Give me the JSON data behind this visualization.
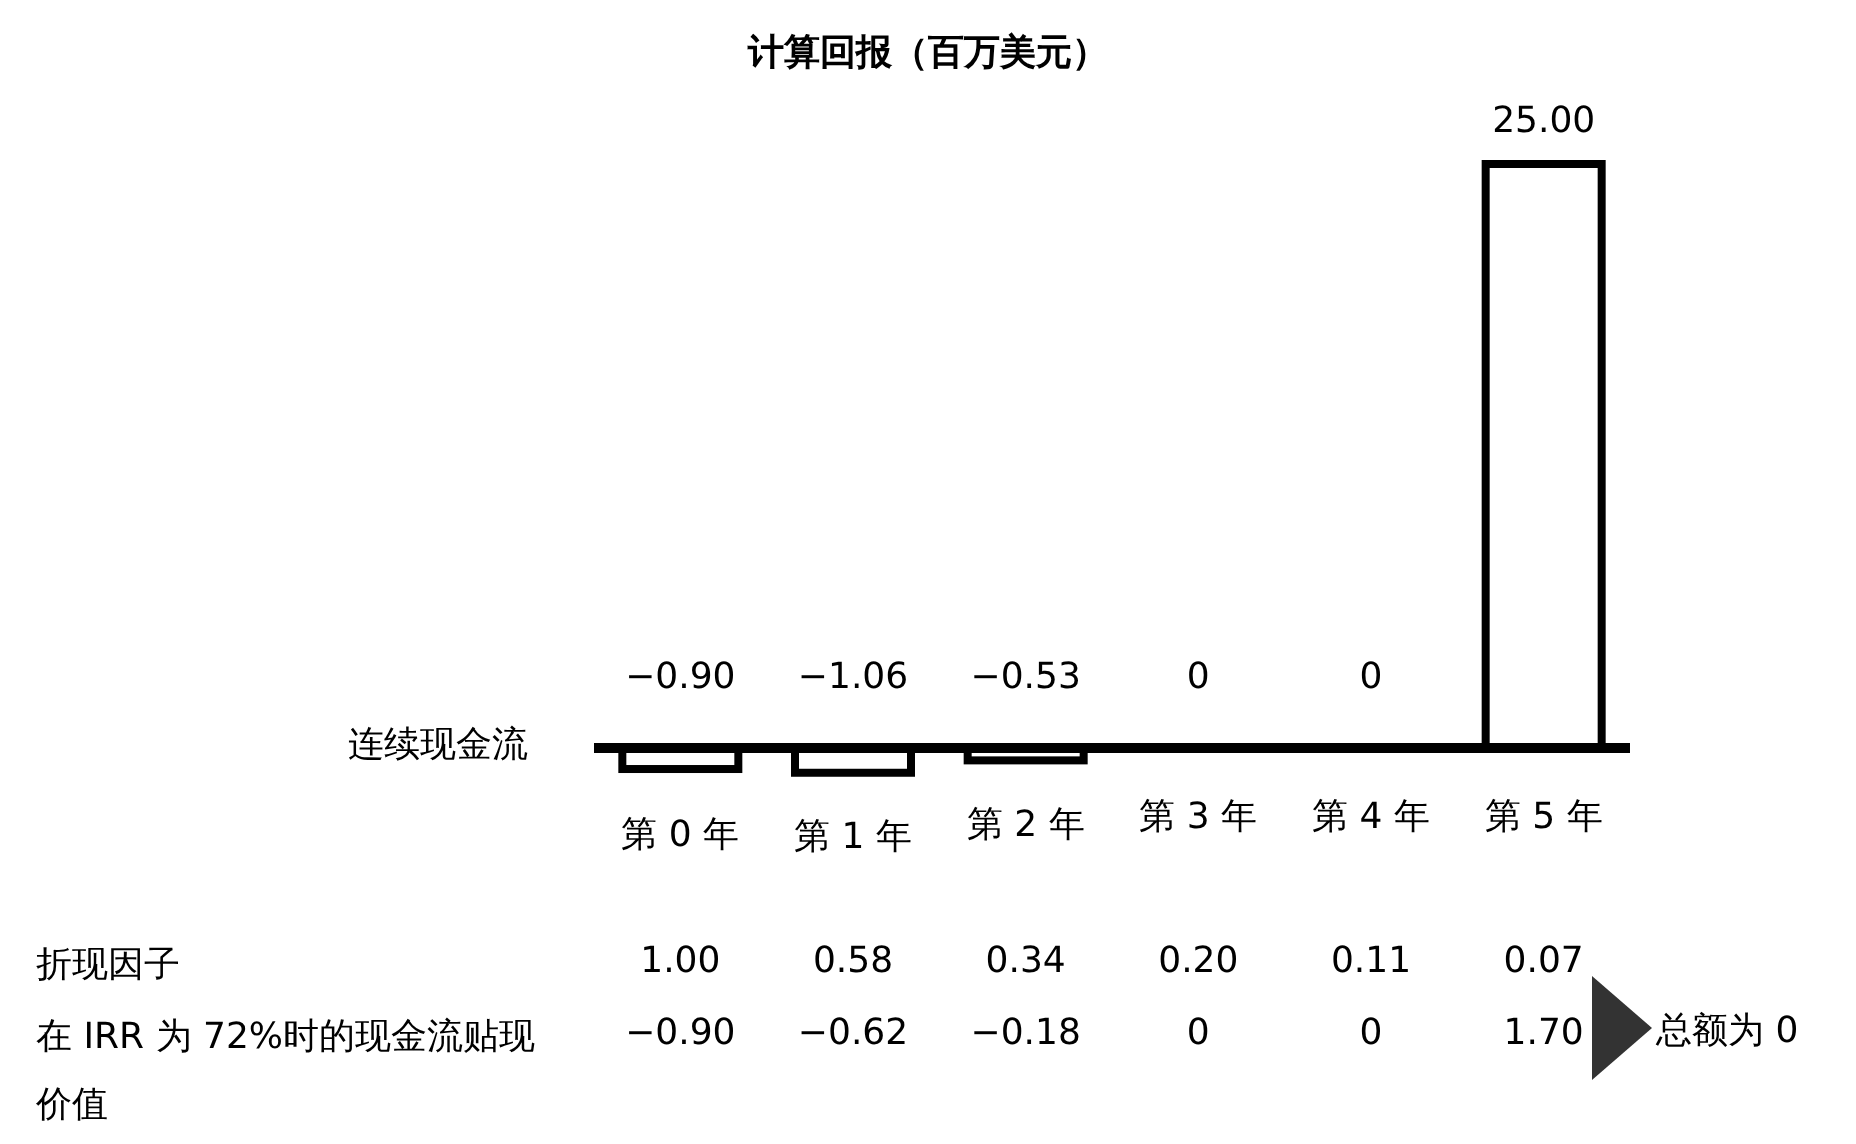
{
  "chart_data": {
    "type": "bar",
    "title": "计算回报（百万美元）",
    "categories": [
      "第 0 年",
      "第 1 年",
      "第 2 年",
      "第 3 年",
      "第 4 年",
      "第 5 年"
    ],
    "values": [
      -0.9,
      -1.06,
      -0.53,
      0,
      0,
      25.0
    ],
    "value_labels": [
      "−0.90",
      "−1.06",
      "−0.53",
      "0",
      "0",
      "25.00"
    ],
    "color": "#ffffff",
    "annotations": [
      "连续现金流",
      "折现因子",
      "1.00",
      "0.58",
      "0.34",
      "0.20",
      "0.11",
      "0.07",
      "在 IRR 为 72%时的现金流贴现价值",
      "−0.90",
      "−0.62",
      "−0.18",
      "0",
      "0",
      "1.70",
      "总额为 0"
    ]
  }
}
